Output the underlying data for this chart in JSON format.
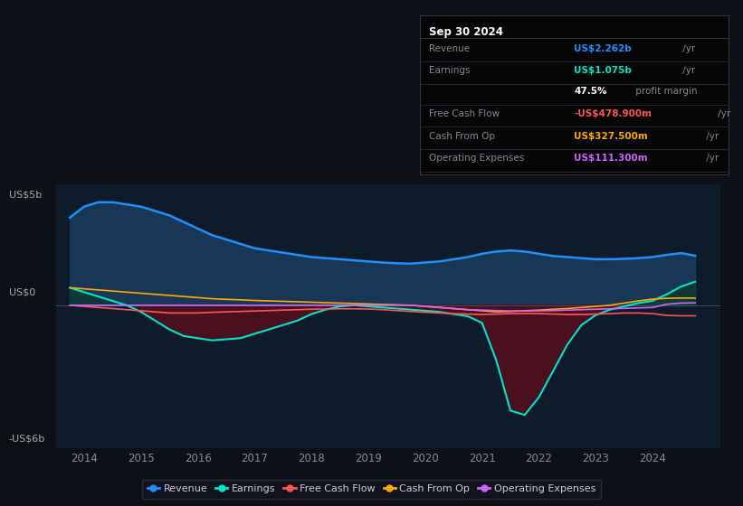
{
  "bg_color": "#0d1117",
  "plot_bg_color": "#0d1b2a",
  "ylabel_top": "US$5b",
  "ylabel_zero": "US$0",
  "ylabel_bottom": "-US$6b",
  "years": [
    2013.75,
    2014.0,
    2014.25,
    2014.5,
    2014.75,
    2015.0,
    2015.25,
    2015.5,
    2015.75,
    2016.0,
    2016.25,
    2016.5,
    2016.75,
    2017.0,
    2017.25,
    2017.5,
    2017.75,
    2018.0,
    2018.25,
    2018.5,
    2018.75,
    2019.0,
    2019.25,
    2019.5,
    2019.75,
    2020.0,
    2020.25,
    2020.5,
    2020.75,
    2021.0,
    2021.25,
    2021.5,
    2021.75,
    2022.0,
    2022.25,
    2022.5,
    2022.75,
    2023.0,
    2023.25,
    2023.5,
    2023.75,
    2024.0,
    2024.25,
    2024.5,
    2024.75
  ],
  "revenue": [
    4.0,
    4.5,
    4.7,
    4.7,
    4.6,
    4.5,
    4.3,
    4.1,
    3.8,
    3.5,
    3.2,
    3.0,
    2.8,
    2.6,
    2.5,
    2.4,
    2.3,
    2.2,
    2.15,
    2.1,
    2.05,
    2.0,
    1.95,
    1.92,
    1.9,
    1.95,
    2.0,
    2.1,
    2.2,
    2.35,
    2.45,
    2.5,
    2.45,
    2.35,
    2.25,
    2.2,
    2.15,
    2.1,
    2.1,
    2.12,
    2.15,
    2.2,
    2.3,
    2.38,
    2.262
  ],
  "earnings": [
    0.8,
    0.6,
    0.4,
    0.2,
    0.0,
    -0.3,
    -0.7,
    -1.1,
    -1.4,
    -1.5,
    -1.6,
    -1.55,
    -1.5,
    -1.3,
    -1.1,
    -0.9,
    -0.7,
    -0.4,
    -0.2,
    -0.05,
    0.0,
    -0.05,
    -0.1,
    -0.15,
    -0.2,
    -0.25,
    -0.3,
    -0.4,
    -0.5,
    -0.8,
    -2.5,
    -4.8,
    -5.0,
    -4.2,
    -3.0,
    -1.8,
    -0.9,
    -0.45,
    -0.2,
    -0.05,
    0.1,
    0.2,
    0.5,
    0.85,
    1.075
  ],
  "cash_from_op": [
    0.8,
    0.75,
    0.7,
    0.65,
    0.6,
    0.55,
    0.5,
    0.45,
    0.4,
    0.35,
    0.3,
    0.27,
    0.25,
    0.22,
    0.2,
    0.18,
    0.16,
    0.14,
    0.12,
    0.1,
    0.08,
    0.06,
    0.04,
    0.02,
    0.0,
    -0.05,
    -0.1,
    -0.15,
    -0.2,
    -0.25,
    -0.3,
    -0.28,
    -0.25,
    -0.22,
    -0.18,
    -0.15,
    -0.1,
    -0.05,
    0.0,
    0.1,
    0.2,
    0.28,
    0.32,
    0.33,
    0.3275
  ],
  "free_cash_flow": [
    0.0,
    -0.05,
    -0.1,
    -0.15,
    -0.2,
    -0.25,
    -0.3,
    -0.35,
    -0.35,
    -0.35,
    -0.32,
    -0.3,
    -0.28,
    -0.26,
    -0.24,
    -0.22,
    -0.2,
    -0.18,
    -0.17,
    -0.16,
    -0.16,
    -0.17,
    -0.2,
    -0.24,
    -0.28,
    -0.32,
    -0.35,
    -0.38,
    -0.4,
    -0.42,
    -0.4,
    -0.38,
    -0.37,
    -0.38,
    -0.4,
    -0.42,
    -0.42,
    -0.4,
    -0.38,
    -0.35,
    -0.35,
    -0.38,
    -0.46,
    -0.48,
    -0.4789
  ],
  "op_expenses": [
    0.0,
    0.0,
    0.0,
    0.0,
    0.0,
    0.0,
    0.0,
    0.0,
    0.0,
    0.0,
    0.0,
    0.0,
    0.0,
    0.0,
    0.0,
    0.0,
    0.0,
    0.0,
    0.0,
    0.0,
    0.0,
    0.0,
    0.0,
    0.0,
    0.0,
    -0.05,
    -0.1,
    -0.15,
    -0.2,
    -0.22,
    -0.24,
    -0.26,
    -0.26,
    -0.25,
    -0.24,
    -0.22,
    -0.2,
    -0.18,
    -0.16,
    -0.14,
    -0.12,
    -0.1,
    0.05,
    0.1,
    0.1113
  ],
  "colors": {
    "revenue_line": "#1e90ff",
    "earnings_line": "#00e5c8",
    "fcf_line": "#ff5555",
    "cfo_line": "#ffaa00",
    "opex_line": "#cc66ff",
    "revenue_fill": "#1a3a5c",
    "earnings_neg_fill": "#4a1020",
    "earnings_pos_fill": "#0a3a30",
    "zero_line": "#555566"
  },
  "legend": [
    {
      "label": "Revenue",
      "color": "#1e90ff"
    },
    {
      "label": "Earnings",
      "color": "#00e5c8"
    },
    {
      "label": "Free Cash Flow",
      "color": "#ff5555"
    },
    {
      "label": "Cash From Op",
      "color": "#ffaa00"
    },
    {
      "label": "Operating Expenses",
      "color": "#cc66ff"
    }
  ],
  "xlim": [
    2013.5,
    2025.2
  ],
  "ylim": [
    -6.5,
    5.5
  ],
  "xticks": [
    2014,
    2015,
    2016,
    2017,
    2018,
    2019,
    2020,
    2021,
    2022,
    2023,
    2024
  ],
  "infobox": {
    "date": "Sep 30 2024",
    "rows": [
      {
        "label": "Revenue",
        "value": "US$2.262b",
        "suffix": " /yr",
        "label_color": "#888899",
        "value_color": "#1e90ff",
        "suffix_color": "#888899"
      },
      {
        "label": "Earnings",
        "value": "US$1.075b",
        "suffix": " /yr",
        "label_color": "#888899",
        "value_color": "#00e5c8",
        "suffix_color": "#888899"
      },
      {
        "label": "",
        "value": "47.5%",
        "suffix": " profit margin",
        "label_color": "#888899",
        "value_color": "#ffffff",
        "suffix_color": "#888899"
      },
      {
        "label": "Free Cash Flow",
        "value": "-US$478.900m",
        "suffix": " /yr",
        "label_color": "#888899",
        "value_color": "#ff5555",
        "suffix_color": "#888899"
      },
      {
        "label": "Cash From Op",
        "value": "US$327.500m",
        "suffix": " /yr",
        "label_color": "#888899",
        "value_color": "#ffaa00",
        "suffix_color": "#888899"
      },
      {
        "label": "Operating Expenses",
        "value": "US$111.300m",
        "suffix": " /yr",
        "label_color": "#888899",
        "value_color": "#cc66ff",
        "suffix_color": "#888899"
      }
    ]
  }
}
